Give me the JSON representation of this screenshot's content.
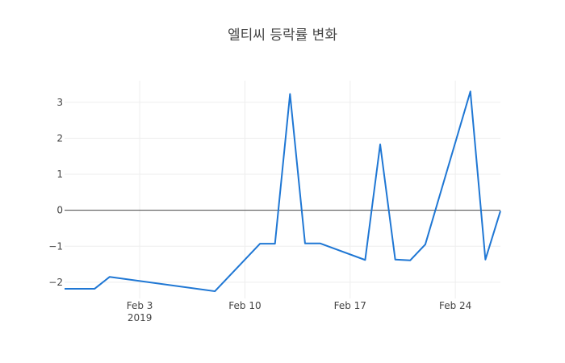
{
  "chart_data": {
    "type": "line",
    "title": "엘티씨 등락률 변화",
    "xlabel": "",
    "ylabel": "",
    "x_start": "2019-01-29",
    "x_end": "2019-02-27",
    "ylim": [
      -2.45,
      3.6
    ],
    "grid": true,
    "line_color": "#1f77d4",
    "zero_line_color": "#444444",
    "x_ticks": [
      {
        "date": "2019-02-03",
        "label": "Feb 3",
        "sublabel": "2019"
      },
      {
        "date": "2019-02-10",
        "label": "Feb 10",
        "sublabel": ""
      },
      {
        "date": "2019-02-17",
        "label": "Feb 17",
        "sublabel": ""
      },
      {
        "date": "2019-02-24",
        "label": "Feb 24",
        "sublabel": ""
      }
    ],
    "y_ticks": [
      {
        "value": -2,
        "label": "−2"
      },
      {
        "value": -1,
        "label": "−1"
      },
      {
        "value": 0,
        "label": "0"
      },
      {
        "value": 1,
        "label": "1"
      },
      {
        "value": 2,
        "label": "2"
      },
      {
        "value": 3,
        "label": "3"
      }
    ],
    "points": [
      {
        "x": "2019-01-29",
        "y": -2.18
      },
      {
        "x": "2019-01-31",
        "y": -2.18
      },
      {
        "x": "2019-02-01",
        "y": -1.85
      },
      {
        "x": "2019-02-08",
        "y": -2.25
      },
      {
        "x": "2019-02-11",
        "y": -0.93
      },
      {
        "x": "2019-02-12",
        "y": -0.93
      },
      {
        "x": "2019-02-13",
        "y": 3.23
      },
      {
        "x": "2019-02-14",
        "y": -0.92
      },
      {
        "x": "2019-02-15",
        "y": -0.92
      },
      {
        "x": "2019-02-18",
        "y": -1.38
      },
      {
        "x": "2019-02-19",
        "y": 1.83
      },
      {
        "x": "2019-02-20",
        "y": -1.37
      },
      {
        "x": "2019-02-21",
        "y": -1.39
      },
      {
        "x": "2019-02-22",
        "y": -0.95
      },
      {
        "x": "2019-02-25",
        "y": 3.3
      },
      {
        "x": "2019-02-26",
        "y": -1.37
      },
      {
        "x": "2019-02-27",
        "y": -0.02
      }
    ]
  }
}
